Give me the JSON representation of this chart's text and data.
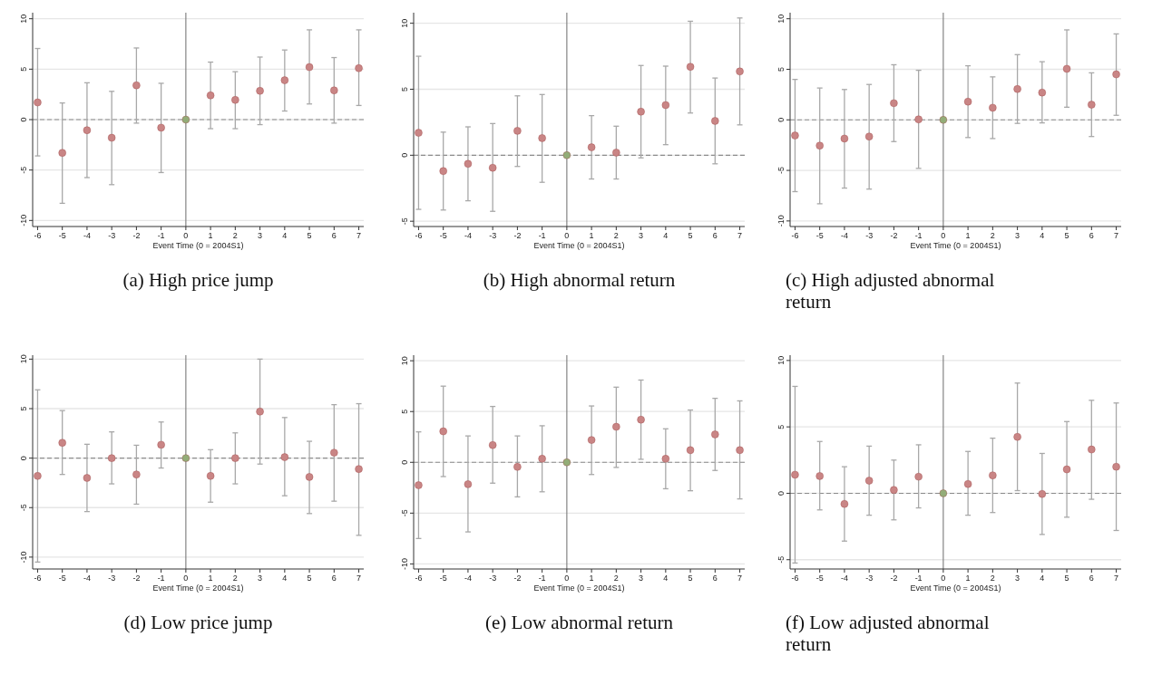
{
  "chart_data": [
    {
      "type": "scatter",
      "title": "(a) High price jump",
      "xlabel": "Event Time (0 = 2004S1)",
      "x": [
        -6,
        -5,
        -4,
        -3,
        -2,
        -1,
        0,
        1,
        2,
        3,
        4,
        5,
        6,
        7
      ],
      "xlim": [
        -6.2,
        7.2
      ],
      "xticks": [
        -6,
        -5,
        -4,
        -3,
        -2,
        -1,
        0,
        1,
        2,
        3,
        4,
        5,
        6,
        7
      ],
      "ylim": [
        -10.6,
        10.6
      ],
      "yticks": [
        -10,
        -5,
        0,
        5,
        10
      ],
      "grid": "y",
      "marker": "circle",
      "values": [
        1.7,
        -3.3,
        -1.05,
        -1.8,
        3.4,
        -0.8,
        0,
        2.4,
        1.95,
        2.85,
        3.9,
        5.2,
        2.9,
        5.1
      ],
      "colors": [
        "#c98585",
        "#c98585",
        "#c98585",
        "#c98585",
        "#c98585",
        "#c98585",
        "#93ad78",
        "#c98585",
        "#c98585",
        "#c98585",
        "#c98585",
        "#c98585",
        "#c98585",
        "#c98585"
      ],
      "errors": [
        [
          -3.6,
          7.05
        ],
        [
          -8.3,
          1.65
        ],
        [
          -5.75,
          3.65
        ],
        [
          -6.45,
          2.8
        ],
        [
          -0.35,
          7.1
        ],
        [
          -5.25,
          3.6
        ],
        null,
        [
          -0.9,
          5.7
        ],
        [
          -0.9,
          4.75
        ],
        [
          -0.5,
          6.2
        ],
        [
          0.85,
          6.9
        ],
        [
          1.55,
          8.9
        ],
        [
          -0.35,
          6.15
        ],
        [
          1.4,
          8.9
        ]
      ],
      "ref_lines": [
        {
          "axis": "y",
          "value": 0,
          "line_style": "dashed",
          "color": "#8c8c8c"
        },
        {
          "axis": "x",
          "value": 0,
          "line_style": "solid",
          "color": "#7a7a7a"
        }
      ]
    },
    {
      "type": "scatter",
      "title": "(b) High abnormal return",
      "xlabel": "Event Time (0 = 2004S1)",
      "x": [
        -6,
        -5,
        -4,
        -3,
        -2,
        -1,
        0,
        1,
        2,
        3,
        4,
        5,
        6,
        7
      ],
      "xlim": [
        -6.2,
        7.2
      ],
      "xticks": [
        -6,
        -5,
        -4,
        -3,
        -2,
        -1,
        0,
        1,
        2,
        3,
        4,
        5,
        6,
        7
      ],
      "ylim": [
        -5.4,
        10.8
      ],
      "yticks": [
        -5,
        0,
        5,
        10
      ],
      "grid": "y",
      "marker": "circle",
      "values": [
        1.7,
        -1.2,
        -0.65,
        -0.95,
        1.85,
        1.3,
        0,
        0.6,
        0.2,
        3.3,
        3.8,
        6.7,
        2.6,
        6.35
      ],
      "colors": [
        "#c98585",
        "#c98585",
        "#c98585",
        "#c98585",
        "#c98585",
        "#c98585",
        "#93ad78",
        "#c98585",
        "#c98585",
        "#c98585",
        "#c98585",
        "#c98585",
        "#c98585",
        "#c98585"
      ],
      "errors": [
        [
          -4.1,
          7.5
        ],
        [
          -4.15,
          1.75
        ],
        [
          -3.45,
          2.15
        ],
        [
          -4.25,
          2.4
        ],
        [
          -0.85,
          4.5
        ],
        [
          -2.05,
          4.6
        ],
        null,
        [
          -1.8,
          3.0
        ],
        [
          -1.8,
          2.2
        ],
        [
          -0.2,
          6.8
        ],
        [
          0.8,
          6.75
        ],
        [
          3.2,
          10.15
        ],
        [
          -0.65,
          5.85
        ],
        [
          2.3,
          10.4
        ]
      ],
      "ref_lines": [
        {
          "axis": "y",
          "value": 0,
          "line_style": "dashed",
          "color": "#8c8c8c"
        },
        {
          "axis": "x",
          "value": 0,
          "line_style": "solid",
          "color": "#7a7a7a"
        }
      ]
    },
    {
      "type": "scatter",
      "title": "(c) High adjusted abnormal return",
      "xlabel": "Event Time (0 = 2004S1)",
      "x": [
        -6,
        -5,
        -4,
        -3,
        -2,
        -1,
        0,
        1,
        2,
        3,
        4,
        5,
        6,
        7
      ],
      "xlim": [
        -6.2,
        7.2
      ],
      "xticks": [
        -6,
        -5,
        -4,
        -3,
        -2,
        -1,
        0,
        1,
        2,
        3,
        4,
        5,
        6,
        7
      ],
      "ylim": [
        -10.55,
        10.6
      ],
      "yticks": [
        -10,
        -5,
        0,
        5,
        10
      ],
      "grid": "y",
      "marker": "circle",
      "values": [
        -1.55,
        -2.55,
        -1.85,
        -1.65,
        1.65,
        0.05,
        0,
        1.8,
        1.2,
        3.05,
        2.7,
        5.05,
        1.5,
        4.5
      ],
      "colors": [
        "#c98585",
        "#c98585",
        "#c98585",
        "#c98585",
        "#c98585",
        "#c98585",
        "#93ad78",
        "#c98585",
        "#c98585",
        "#c98585",
        "#c98585",
        "#c98585",
        "#c98585",
        "#c98585"
      ],
      "errors": [
        [
          -7.1,
          4.0
        ],
        [
          -8.3,
          3.15
        ],
        [
          -6.75,
          3.0
        ],
        [
          -6.85,
          3.5
        ],
        [
          -2.15,
          5.45
        ],
        [
          -4.8,
          4.9
        ],
        null,
        [
          -1.75,
          5.35
        ],
        [
          -1.85,
          4.25
        ],
        [
          -0.35,
          6.45
        ],
        [
          -0.3,
          5.75
        ],
        [
          1.25,
          8.9
        ],
        [
          -1.65,
          4.65
        ],
        [
          0.45,
          8.5
        ]
      ],
      "ref_lines": [
        {
          "axis": "y",
          "value": 0,
          "line_style": "dashed",
          "color": "#8c8c8c"
        },
        {
          "axis": "x",
          "value": 0,
          "line_style": "solid",
          "color": "#7a7a7a"
        }
      ]
    },
    {
      "type": "scatter",
      "title": "(d) Low price jump",
      "xlabel": "Event Time (0 = 2004S1)",
      "x": [
        -6,
        -5,
        -4,
        -3,
        -2,
        -1,
        0,
        1,
        2,
        3,
        4,
        5,
        6,
        7
      ],
      "xlim": [
        -6.2,
        7.2
      ],
      "xticks": [
        -6,
        -5,
        -4,
        -3,
        -2,
        -1,
        0,
        1,
        2,
        3,
        4,
        5,
        6,
        7
      ],
      "ylim": [
        -11.2,
        10.4
      ],
      "yticks": [
        -10,
        -5,
        0,
        5,
        10
      ],
      "grid": "y",
      "marker": "circle",
      "values": [
        -1.8,
        1.55,
        -2.0,
        0,
        -1.65,
        1.35,
        0,
        -1.8,
        0,
        4.7,
        0.1,
        -1.9,
        0.55,
        -1.1
      ],
      "colors": [
        "#c98585",
        "#c98585",
        "#c98585",
        "#c98585",
        "#c98585",
        "#c98585",
        "#93ad78",
        "#c98585",
        "#c98585",
        "#c98585",
        "#c98585",
        "#c98585",
        "#c98585",
        "#c98585"
      ],
      "errors": [
        [
          -10.5,
          6.9
        ],
        [
          -1.65,
          4.8
        ],
        [
          -5.4,
          1.4
        ],
        [
          -2.6,
          2.65
        ],
        [
          -4.65,
          1.3
        ],
        [
          -1.0,
          3.65
        ],
        null,
        [
          -4.45,
          0.85
        ],
        [
          -2.6,
          2.55
        ],
        [
          -0.6,
          10.0
        ],
        [
          -3.8,
          4.1
        ],
        [
          -5.6,
          1.7
        ],
        [
          -4.35,
          5.4
        ],
        [
          -7.8,
          5.5
        ]
      ],
      "ref_lines": [
        {
          "axis": "y",
          "value": 0,
          "line_style": "dashed",
          "color": "#8c8c8c"
        },
        {
          "axis": "x",
          "value": 0,
          "line_style": "solid",
          "color": "#7a7a7a"
        }
      ]
    },
    {
      "type": "scatter",
      "title": "(e) Low abnormal return",
      "xlabel": "Event Time (0 = 2004S1)",
      "x": [
        -6,
        -5,
        -4,
        -3,
        -2,
        -1,
        0,
        1,
        2,
        3,
        4,
        5,
        6,
        7
      ],
      "xlim": [
        -6.2,
        7.2
      ],
      "xticks": [
        -6,
        -5,
        -4,
        -3,
        -2,
        -1,
        0,
        1,
        2,
        3,
        4,
        5,
        6,
        7
      ],
      "ylim": [
        -10.5,
        10.55
      ],
      "yticks": [
        -10,
        -5,
        0,
        5,
        10
      ],
      "grid": "y",
      "marker": "circle",
      "values": [
        -2.25,
        3.05,
        -2.15,
        1.7,
        -0.45,
        0.35,
        0,
        2.2,
        3.5,
        4.2,
        0.35,
        1.2,
        2.75,
        1.2
      ],
      "colors": [
        "#c98585",
        "#c98585",
        "#c98585",
        "#c98585",
        "#c98585",
        "#c98585",
        "#93ad78",
        "#c98585",
        "#c98585",
        "#c98585",
        "#c98585",
        "#c98585",
        "#c98585",
        "#c98585"
      ],
      "errors": [
        [
          -7.5,
          3.0
        ],
        [
          -1.4,
          7.5
        ],
        [
          -6.85,
          2.6
        ],
        [
          -2.05,
          5.5
        ],
        [
          -3.4,
          2.6
        ],
        [
          -2.9,
          3.6
        ],
        null,
        [
          -1.2,
          5.55
        ],
        [
          -0.5,
          7.4
        ],
        [
          0.3,
          8.1
        ],
        [
          -2.6,
          3.3
        ],
        [
          -2.8,
          5.15
        ],
        [
          -0.8,
          6.3
        ],
        [
          -3.6,
          6.05
        ]
      ],
      "ref_lines": [
        {
          "axis": "y",
          "value": 0,
          "line_style": "dashed",
          "color": "#8c8c8c"
        },
        {
          "axis": "x",
          "value": 0,
          "line_style": "solid",
          "color": "#7a7a7a"
        }
      ]
    },
    {
      "type": "scatter",
      "title": "(f) Low adjusted abnormal return",
      "xlabel": "Event Time (0 = 2004S1)",
      "x": [
        -6,
        -5,
        -4,
        -3,
        -2,
        -1,
        0,
        1,
        2,
        3,
        4,
        5,
        6,
        7
      ],
      "xlim": [
        -6.2,
        7.2
      ],
      "xticks": [
        -6,
        -5,
        -4,
        -3,
        -2,
        -1,
        0,
        1,
        2,
        3,
        4,
        5,
        6,
        7
      ],
      "ylim": [
        -5.7,
        10.4
      ],
      "yticks": [
        -5,
        0,
        5,
        10
      ],
      "grid": "y",
      "marker": "circle",
      "values": [
        1.4,
        1.3,
        -0.8,
        0.95,
        0.25,
        1.25,
        0,
        0.7,
        1.35,
        4.25,
        -0.05,
        1.8,
        3.3,
        2.0
      ],
      "colors": [
        "#c98585",
        "#c98585",
        "#c98585",
        "#c98585",
        "#c98585",
        "#c98585",
        "#93ad78",
        "#c98585",
        "#c98585",
        "#c98585",
        "#c98585",
        "#c98585",
        "#c98585",
        "#c98585"
      ],
      "errors": [
        [
          -5.25,
          8.05
        ],
        [
          -1.25,
          3.9
        ],
        [
          -3.6,
          2.0
        ],
        [
          -1.65,
          3.55
        ],
        [
          -2.0,
          2.5
        ],
        [
          -1.1,
          3.65
        ],
        null,
        [
          -1.65,
          3.15
        ],
        [
          -1.45,
          4.15
        ],
        [
          0.2,
          8.3
        ],
        [
          -3.1,
          3.0
        ],
        [
          -1.8,
          5.4
        ],
        [
          -0.45,
          7.0
        ],
        [
          -2.8,
          6.8
        ]
      ],
      "ref_lines": [
        {
          "axis": "y",
          "value": 0,
          "line_style": "dashed",
          "color": "#8c8c8c"
        },
        {
          "axis": "x",
          "value": 0,
          "line_style": "solid",
          "color": "#7a7a7a"
        }
      ]
    }
  ]
}
